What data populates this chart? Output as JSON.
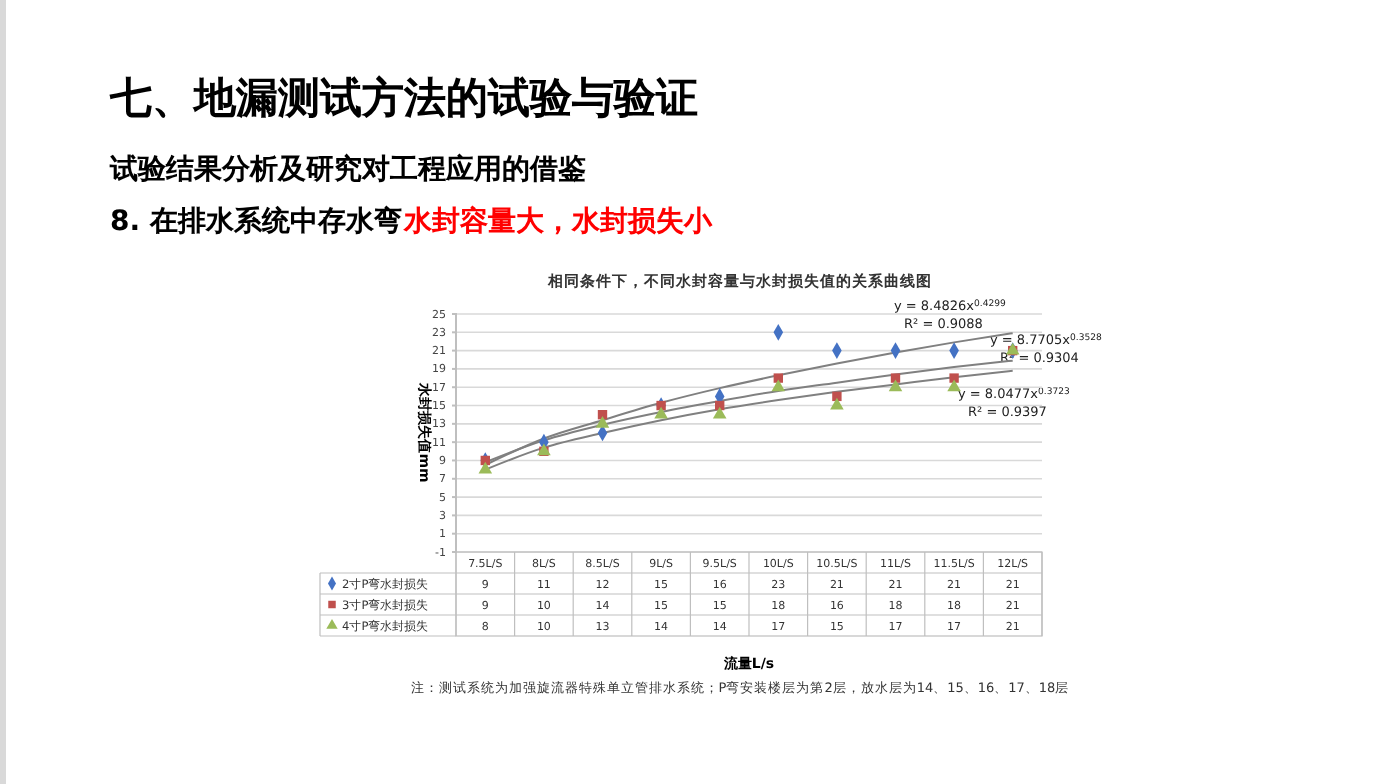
{
  "chart_data": {
    "type": "scatter",
    "title": "七、地漏测试方法的试验与验证",
    "subtitle": "试验结果分析及研究对工程应用的借鉴",
    "annotations": [
      "8. 在排水系统中存水弯",
      "水封容量大，水封损失小",
      "相同条件下，不同水封容量与水封损失值的关系曲线图",
      "y = 8.4826x$^{0.4299}$",
      "R² = 0.9088",
      "y = 8.7705x$^{0.3528}$",
      "R² = 0.9304",
      "y = 8.0477x$^{0.3723}$",
      "R² = 0.9397",
      "流量L/s",
      "注：测试系统为加强旋流器特殊单立管排水系统；P弯安装楼层为第2层，放水层为14、15、16、17、18层"
    ],
    "ylabel": "水封损失值mm",
    "categories": [
      "7.5L/S",
      "8L/S",
      "8.5L/S",
      "9L/S",
      "9.5L/S",
      "10L/S",
      "10.5L/S",
      "11L/S",
      "11.5L/S",
      "12L/S"
    ],
    "series": [
      {
        "name": "2寸P弯水封损失",
        "marker": "diamond",
        "color": "#4472c4",
        "values": [
          9,
          11,
          12,
          15,
          16,
          23,
          21,
          21,
          21,
          21
        ],
        "value_labels": [
          "9",
          "11",
          "12",
          "15",
          "16",
          "23",
          "21",
          "21",
          "21",
          "21"
        ]
      },
      {
        "name": "3寸P弯水封损失",
        "marker": "square",
        "color": "#c0504d",
        "values": [
          9,
          10,
          14,
          15,
          15,
          18,
          16,
          18,
          18,
          21
        ],
        "value_labels": [
          "9",
          "10",
          "14",
          "15",
          "15",
          "18",
          "16",
          "18",
          "18",
          "21"
        ]
      },
      {
        "name": "4寸P弯水封损失",
        "marker": "triangle",
        "color": "#9bbb59",
        "values": [
          8,
          10,
          13,
          14,
          14,
          17,
          15,
          17,
          17,
          21
        ],
        "value_labels": [
          "8",
          "10",
          "13",
          "14",
          "14",
          "17",
          "15",
          "17",
          "17",
          "21"
        ]
      },
      {
        "type": "line",
        "color": "#808080",
        "values": [
          8.5,
          11.4,
          13.4,
          15.3,
          16.9,
          18.3,
          19.6,
          20.8,
          21.9,
          22.9
        ]
      },
      {
        "type": "line",
        "color": "#808080",
        "values": [
          8.8,
          11.2,
          12.9,
          14.3,
          15.5,
          16.6,
          17.5,
          18.4,
          19.2,
          19.9
        ]
      },
      {
        "type": "line",
        "color": "#808080",
        "values": [
          8.0,
          10.4,
          12.0,
          13.4,
          14.6,
          15.6,
          16.5,
          17.3,
          18.1,
          18.8
        ]
      }
    ],
    "ylim": [
      -1,
      25
    ],
    "yticks": [
      -1,
      1,
      3,
      5,
      7,
      9,
      11,
      13,
      15,
      17,
      19,
      21,
      23,
      25
    ],
    "grid": "y",
    "legend": "bottom left"
  }
}
